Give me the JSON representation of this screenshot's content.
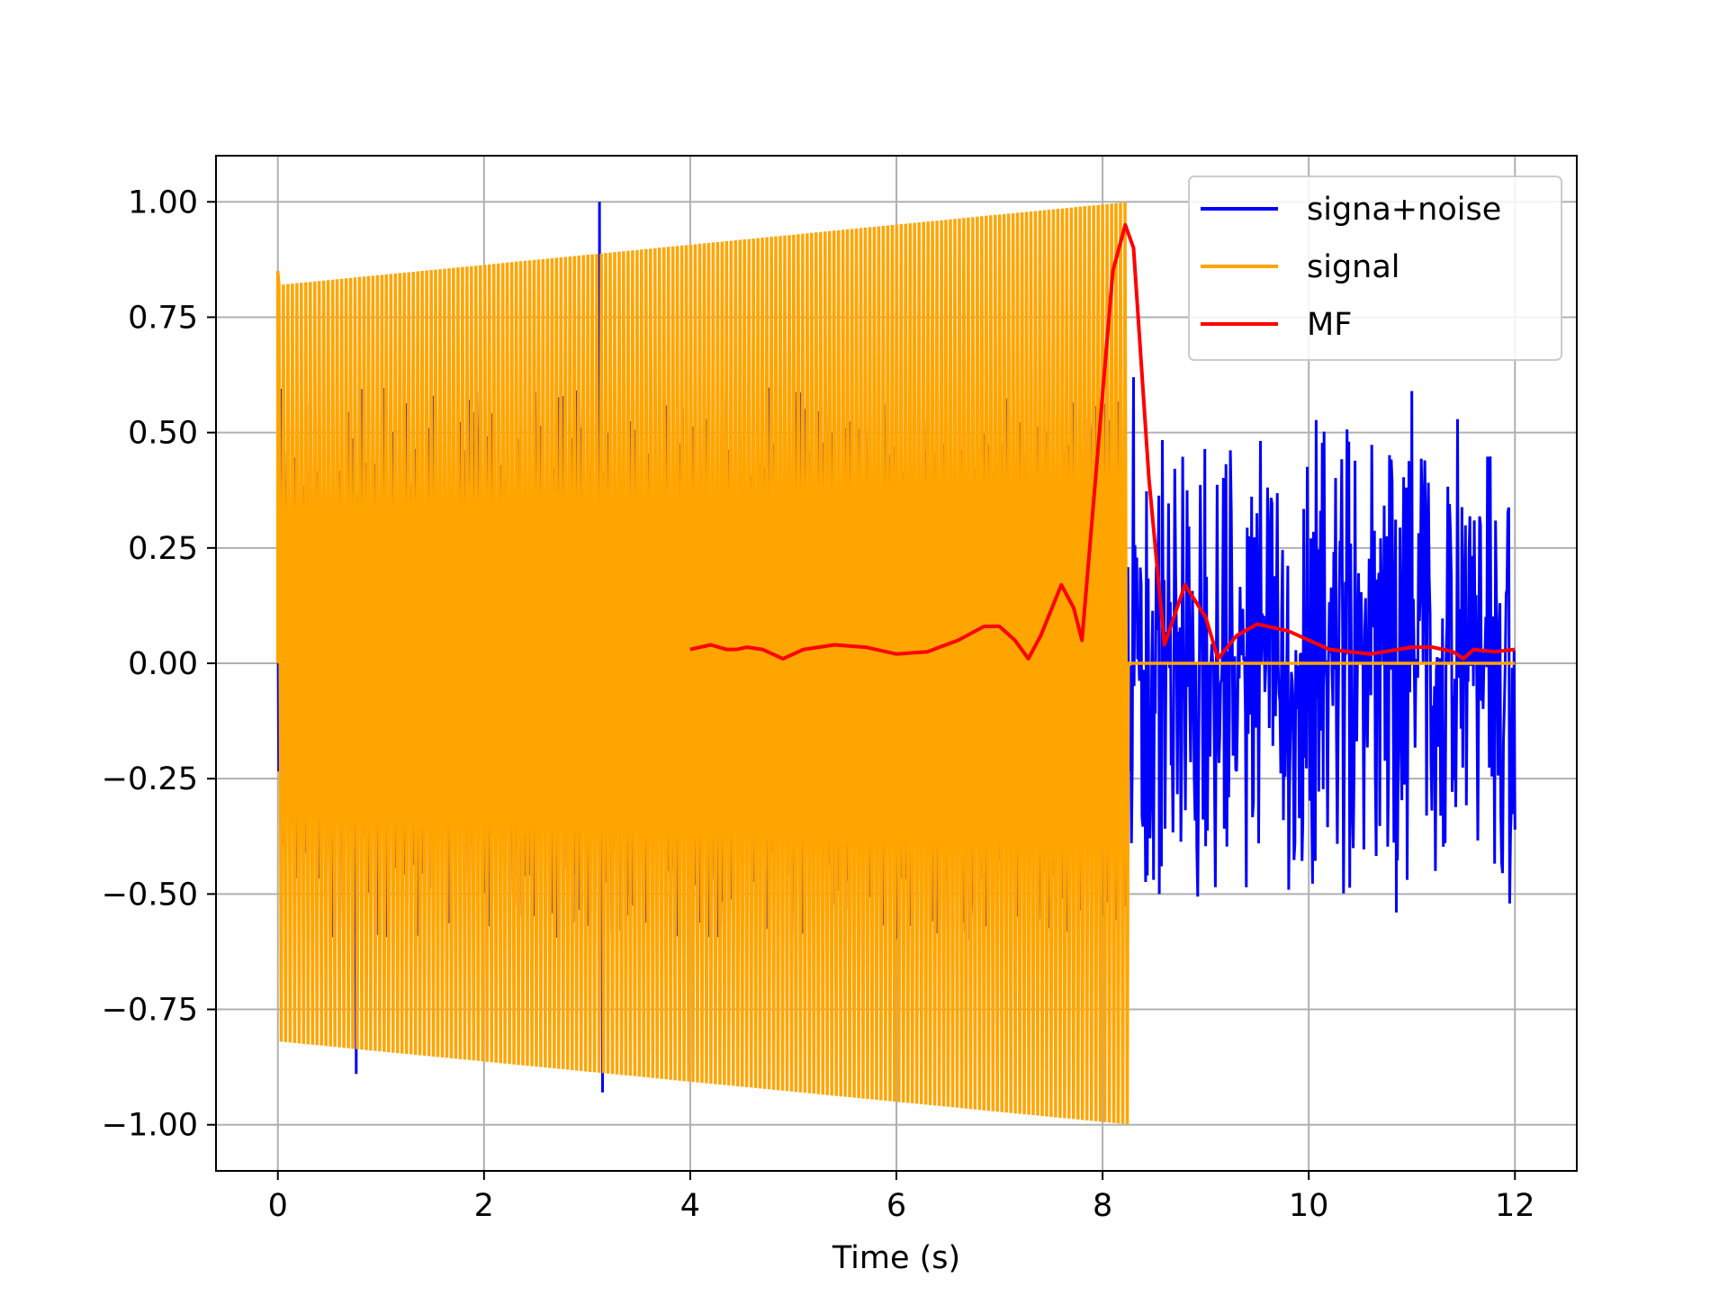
{
  "chart_data": {
    "type": "line",
    "title": "",
    "xlabel": "Time (s)",
    "ylabel": "",
    "xlim": [
      -0.6,
      12.6
    ],
    "ylim": [
      -1.1,
      1.1
    ],
    "grid": true,
    "legend_position": "top-right",
    "x_ticks": [
      0,
      2,
      4,
      6,
      8,
      10,
      12
    ],
    "x_tick_labels": [
      "0",
      "2",
      "4",
      "6",
      "8",
      "10",
      "12"
    ],
    "y_ticks": [
      1.0,
      0.75,
      0.5,
      0.25,
      0.0,
      -0.25,
      -0.5,
      -0.75,
      -1.0
    ],
    "y_tick_labels": [
      "1.00",
      "0.75",
      "0.50",
      "0.25",
      "0.00",
      "−0.25",
      "−0.50",
      "−0.75",
      "−1.00"
    ],
    "series": [
      {
        "name": "signa+noise",
        "color": "#0000ff",
        "description_of_shape": "noisy signal over 0–12 s; dominated by orange signal until ~8.3 s, then noise only",
        "x_range": [
          0,
          12
        ],
        "noise_peaks": [
          {
            "x": 3.12,
            "y": 1.0
          },
          {
            "x": 3.15,
            "y": -0.93
          },
          {
            "x": 0.76,
            "y": -0.89
          },
          {
            "x": 8.3,
            "y": 0.62
          },
          {
            "x": 11.0,
            "y": 0.59
          },
          {
            "x": 10.85,
            "y": -0.54
          },
          {
            "x": 8.55,
            "y": -0.5
          }
        ],
        "noise_tail_extent": [
          -0.54,
          0.59
        ]
      },
      {
        "name": "signal",
        "color": "#ffa500",
        "description_of_shape": "chirp-like oscillation from 0 to ~8.25 s with amplitude rising from ~0.82 to 1.0, zero afterward",
        "x_range": [
          0,
          12
        ],
        "amplitude_start": 0.82,
        "amplitude_end": 1.0,
        "end_time": 8.25,
        "start_spike": 0.85
      },
      {
        "name": "MF",
        "color": "#ff0000",
        "x": [
          4.0,
          4.2,
          4.35,
          4.45,
          4.55,
          4.7,
          4.9,
          5.1,
          5.4,
          5.7,
          6.0,
          6.3,
          6.6,
          6.85,
          7.0,
          7.15,
          7.28,
          7.4,
          7.6,
          7.72,
          7.8,
          7.95,
          8.1,
          8.22,
          8.3,
          8.45,
          8.6,
          8.8,
          9.0,
          9.12,
          9.3,
          9.5,
          9.8,
          10.2,
          10.6,
          11.0,
          11.2,
          11.4,
          11.5,
          11.6,
          11.8,
          12.0
        ],
        "y": [
          0.03,
          0.04,
          0.03,
          0.03,
          0.035,
          0.03,
          0.01,
          0.03,
          0.04,
          0.035,
          0.02,
          0.025,
          0.05,
          0.08,
          0.08,
          0.05,
          0.01,
          0.06,
          0.17,
          0.12,
          0.05,
          0.45,
          0.85,
          0.95,
          0.9,
          0.4,
          0.04,
          0.17,
          0.1,
          0.01,
          0.06,
          0.085,
          0.07,
          0.03,
          0.02,
          0.035,
          0.035,
          0.025,
          0.01,
          0.03,
          0.025,
          0.03
        ]
      }
    ]
  }
}
